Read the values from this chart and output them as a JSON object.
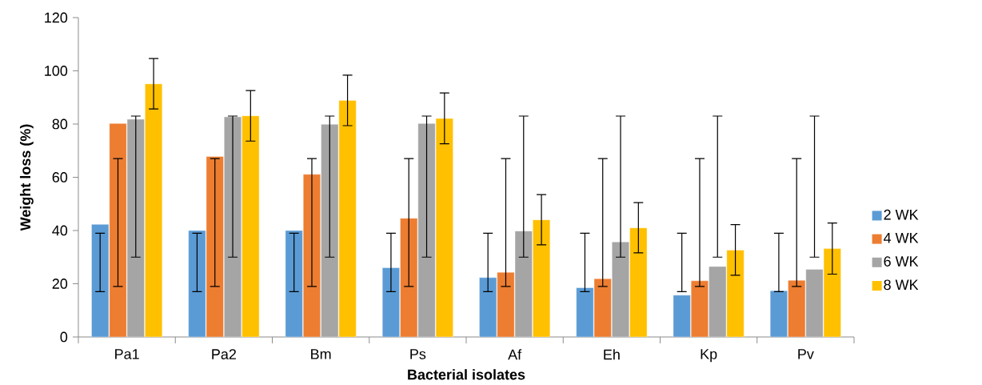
{
  "chart_data": {
    "type": "bar",
    "xlabel": "Bacterial isolates",
    "ylabel": "Weight loss (%)",
    "categories": [
      "Pa1",
      "Pa2",
      "Bm",
      "Ps",
      "Af",
      "Eh",
      "Kp",
      "Pv"
    ],
    "series": [
      {
        "name": "2 WK",
        "color": "#5b9bd5",
        "values": [
          42.3,
          40,
          40,
          26,
          22.3,
          18.5,
          15.7,
          17.4
        ],
        "errors": [
          [
            17,
            39
          ],
          [
            17,
            39
          ],
          [
            17,
            39
          ],
          [
            17,
            39
          ],
          [
            17,
            39
          ],
          [
            17,
            39
          ],
          [
            17,
            39
          ],
          [
            17,
            39
          ]
        ]
      },
      {
        "name": "4 WK",
        "color": "#ed7d31",
        "values": [
          80.2,
          67.8,
          61.1,
          44.6,
          24.3,
          21.9,
          21.1,
          21.3
        ],
        "errors": [
          [
            19,
            67
          ],
          [
            19,
            67
          ],
          [
            19,
            67
          ],
          [
            19,
            67
          ],
          [
            19,
            67
          ],
          [
            19,
            67
          ],
          [
            19,
            67
          ],
          [
            19,
            67
          ]
        ]
      },
      {
        "name": "6 WK",
        "color": "#a5a5a5",
        "values": [
          81.8,
          82.7,
          79.9,
          80.2,
          39.8,
          35.7,
          26.5,
          25.4
        ],
        "errors": [
          [
            30,
            83
          ],
          [
            30,
            83
          ],
          [
            30,
            83
          ],
          [
            30,
            83
          ],
          [
            30,
            83
          ],
          [
            30,
            83
          ],
          [
            30,
            83
          ],
          [
            30,
            83
          ]
        ]
      },
      {
        "name": "8 WK",
        "color": "#ffc000",
        "values": [
          95.1,
          83.1,
          88.9,
          82.1,
          44,
          41,
          32.6,
          33.2
        ],
        "errors": [
          [
            85.7,
            104.6
          ],
          [
            73.6,
            92.6
          ],
          [
            79.4,
            98.4
          ],
          [
            72.6,
            91.7
          ],
          [
            34.6,
            53.5
          ],
          [
            31.6,
            50.5
          ],
          [
            23.2,
            42.2
          ],
          [
            23.6,
            42.8
          ]
        ]
      }
    ],
    "ylim": [
      0,
      120
    ],
    "yticks": [
      0,
      20,
      40,
      60,
      80,
      100,
      120
    ],
    "legend": "right"
  }
}
